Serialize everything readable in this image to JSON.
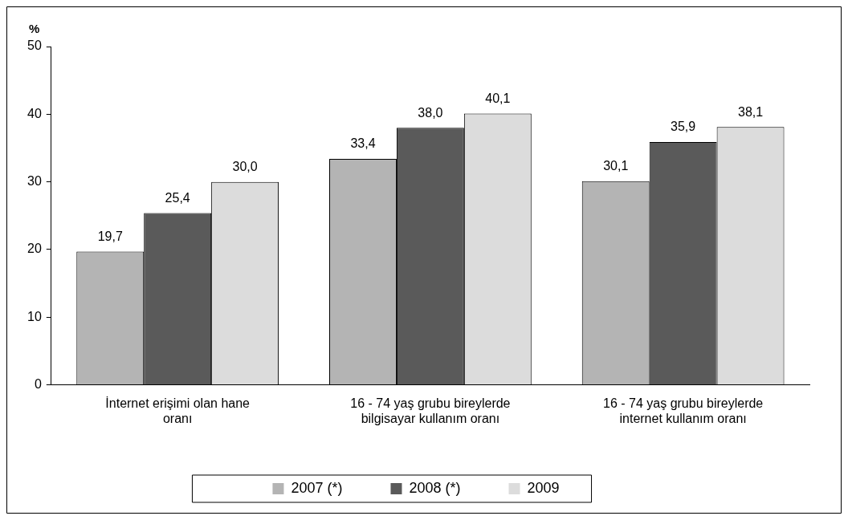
{
  "chart_data": {
    "type": "bar",
    "ylabel": "%",
    "categories": [
      "İnternet erişimi olan hane oranı",
      "16 - 74 yaş grubu bireylerde bilgisayar kullanım oranı",
      "16 - 74 yaş grubu bireylerde internet kullanım oranı"
    ],
    "series": [
      {
        "name": "2007 (*)",
        "color": "#b4b4b4",
        "values": [
          19.7,
          33.4,
          30.1
        ],
        "value_labels": [
          "19,7",
          "33,4",
          "30,1"
        ]
      },
      {
        "name": "2008 (*)",
        "color": "#5a5a5a",
        "values": [
          25.4,
          38.0,
          35.9
        ],
        "value_labels": [
          "25,4",
          "38,0",
          "35,9"
        ]
      },
      {
        "name": "2009",
        "color": "#dcdcdc",
        "values": [
          30.0,
          40.1,
          38.1
        ],
        "value_labels": [
          "30,0",
          "40,1",
          "38,1"
        ]
      }
    ],
    "ylim": [
      0,
      50
    ],
    "yticks": [
      0,
      10,
      20,
      30,
      40,
      50
    ],
    "grid": false,
    "legend": "bottom"
  }
}
